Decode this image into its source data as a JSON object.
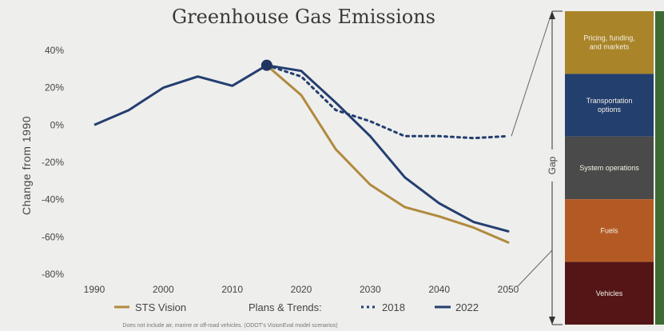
{
  "chart_data": {
    "type": "line",
    "title": "Greenhouse Gas Emissions",
    "ylabel": "Change from 1990",
    "xlim": [
      1990,
      2050
    ],
    "ylim": [
      -80,
      40
    ],
    "x_ticks": [
      "1990",
      "2000",
      "2010",
      "2020",
      "2030",
      "2040",
      "2050"
    ],
    "y_ticks": [
      "40%",
      "20%",
      "0%",
      "-20%",
      "-40%",
      "-60%",
      "-80%"
    ],
    "grid": false,
    "legend_position": "bottom",
    "legend_prefix": "Plans & Trends:",
    "historical": {
      "x": [
        1990,
        1995,
        2000,
        2005,
        2010,
        2015
      ],
      "values": [
        0,
        8,
        20,
        26,
        21,
        32
      ]
    },
    "marker": {
      "x": 2015,
      "value": 32
    },
    "series": [
      {
        "name": "STS Vision",
        "style": "solid",
        "color": "#b08a3e",
        "x": [
          2015,
          2020,
          2025,
          2030,
          2035,
          2040,
          2045,
          2050
        ],
        "values": [
          32,
          16,
          -13,
          -32,
          -44,
          -49,
          -55,
          -63
        ]
      },
      {
        "name": "2018",
        "style": "dotted",
        "color": "#243e70",
        "x": [
          2015,
          2020,
          2025,
          2030,
          2035,
          2040,
          2045,
          2050
        ],
        "values": [
          32,
          26,
          8,
          2,
          -6,
          -6,
          -7,
          -6
        ]
      },
      {
        "name": "2022",
        "style": "solid",
        "color": "#243e70",
        "x": [
          2015,
          2020,
          2025,
          2030,
          2035,
          2040,
          2045,
          2050
        ],
        "values": [
          32,
          29,
          12,
          -6,
          -28,
          -42,
          -52,
          -57
        ]
      }
    ],
    "footnote": "Does not include air, marine or off-road vehicles. (ODOT's VisionEval model scenarios)",
    "gap": {
      "label": "Gap",
      "segments": [
        {
          "label": "Pricing, funding, and markets",
          "color": "#a98428"
        },
        {
          "label": "Transportation options",
          "color": "#233f6e"
        },
        {
          "label": "System operations",
          "color": "#4a4a4a"
        },
        {
          "label": "Fuels",
          "color": "#b35a24"
        },
        {
          "label": "Vehicles",
          "color": "#531516"
        }
      ]
    }
  }
}
